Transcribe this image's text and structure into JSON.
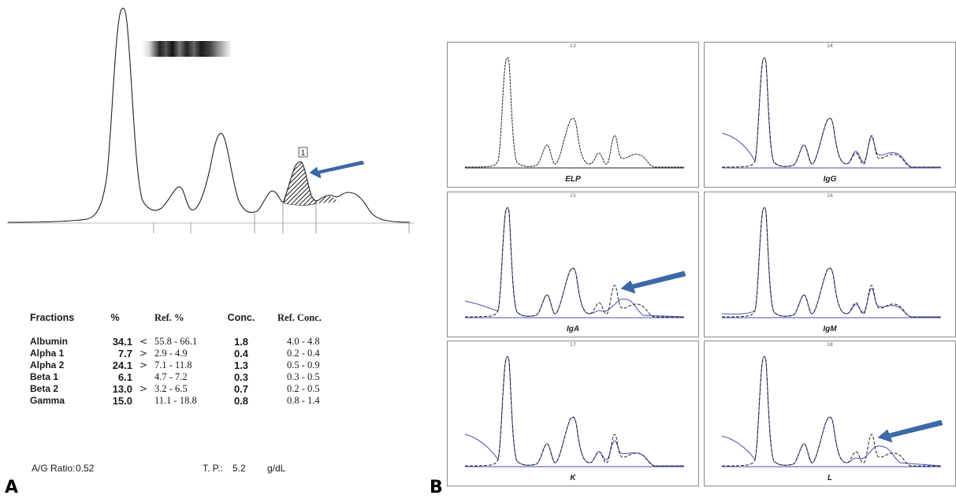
{
  "panels": {
    "a_letter": "A",
    "b_letter": "B"
  },
  "chart_data": [
    {
      "type": "line",
      "panel": "A",
      "fraction_marker_label": "1",
      "table": {
        "headers": [
          "Fractions",
          "%",
          "Ref. %",
          "Conc.",
          "Ref. Conc."
        ],
        "rows": [
          {
            "name": "Albumin",
            "percent": "34.1",
            "flag": "<",
            "ref_percent": "55.8 - 66.1",
            "conc": "1.8",
            "ref_conc": "4.0 -  4.8"
          },
          {
            "name": "Alpha 1",
            "percent": "7.7",
            "flag": ">",
            "ref_percent": "2.9 -  4.9",
            "conc": "0.4",
            "ref_conc": "0.2 -  0.4"
          },
          {
            "name": "Alpha 2",
            "percent": "24.1",
            "flag": ">",
            "ref_percent": "7.1 - 11.8",
            "conc": "1.3",
            "ref_conc": "0.5 -  0.9"
          },
          {
            "name": "Beta 1",
            "percent": "6.1",
            "flag": "",
            "ref_percent": "4.7 -  7.2",
            "conc": "0.3",
            "ref_conc": "0.3 -  0.5"
          },
          {
            "name": "Beta 2",
            "percent": "13.0",
            "flag": ">",
            "ref_percent": "3.2 -  6.5",
            "conc": "0.7",
            "ref_conc": "0.2 -  0.5"
          },
          {
            "name": "Gamma",
            "percent": "15.0",
            "flag": "",
            "ref_percent": "11.1 - 18.8",
            "conc": "0.8",
            "ref_conc": "0.8 -  1.4"
          }
        ]
      },
      "ag_ratio_label": "A/G Ratio:",
      "ag_ratio_value": "0.52",
      "tp_label": "T. P.:",
      "tp_value": "5.2",
      "tp_unit": "g/dL"
    },
    {
      "type": "line",
      "panel": "B",
      "panels": [
        {
          "number": "13",
          "label": "ELP",
          "arrow": false
        },
        {
          "number": "14",
          "label": "IgG",
          "arrow": false
        },
        {
          "number": "15",
          "label": "IgA",
          "arrow": true
        },
        {
          "number": "16",
          "label": "IgM",
          "arrow": false
        },
        {
          "number": "17",
          "label": "K",
          "arrow": false
        },
        {
          "number": "18",
          "label": "L",
          "arrow": true
        }
      ]
    }
  ],
  "colors": {
    "trace": "#222222",
    "overlay": "#4a4fb0",
    "arrow": "#3a6aa8",
    "frame": "#8a8a8a",
    "hatch": "#1a1a1a"
  }
}
